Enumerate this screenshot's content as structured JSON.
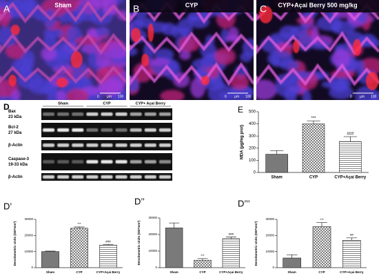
{
  "micrographs": [
    {
      "label": "A",
      "title": "Sham",
      "scale_bar": {
        "start": "0",
        "unit": "μm",
        "end": "100"
      }
    },
    {
      "label": "B",
      "title": "CYP",
      "scale_bar": {
        "start": "0",
        "unit": "μm",
        "end": "100"
      }
    },
    {
      "label": "C",
      "title": "CYP+Açai Berry 500 mg/kg",
      "scale_bar": {
        "start": "0",
        "unit": "μm",
        "end": "100"
      }
    }
  ],
  "blot": {
    "label": "D",
    "groups": [
      "Sham",
      "CYP",
      "CYP+ Açai Berry"
    ],
    "rows": [
      [
        "Bax",
        "23 kDa"
      ],
      [
        "Bcl-2",
        "27 kDa"
      ],
      [
        "β-Actin"
      ],
      [
        "Caspase-3",
        "19-33 kDa"
      ],
      [
        "β-Actin"
      ]
    ]
  },
  "chart_data": [
    {
      "type": "bar",
      "label": "E",
      "ylabel": "MDA (µg/mg prot)",
      "categories": [
        "Sham",
        "CYP",
        "CYP+Açai Berry"
      ],
      "values": [
        150,
        400,
        255
      ],
      "errors": [
        30,
        25,
        40
      ],
      "annotations": [
        null,
        "***",
        "###"
      ],
      "ylim": [
        0,
        500
      ],
      "yticks": [
        0,
        100,
        200,
        300,
        400,
        500
      ]
    },
    {
      "type": "bar",
      "label": "D’",
      "ylabel": "Densitometric Units (OD*mm²)",
      "categories": [
        "Sham",
        "CYP",
        "CYP+Açai Berry"
      ],
      "values": [
        10000,
        24500,
        14000
      ],
      "errors": [
        300,
        800,
        500
      ],
      "annotations": [
        null,
        "***",
        "###"
      ],
      "ylim": [
        0,
        30000
      ],
      "yticks": [
        0,
        10000,
        20000,
        30000
      ]
    },
    {
      "type": "bar",
      "label": "D’’",
      "ylabel": "Densitometric Units (OD*mm²)",
      "categories": [
        "Sham",
        "CYP",
        "CYP+Açai Berry"
      ],
      "values": [
        24000,
        4500,
        17500
      ],
      "errors": [
        3000,
        1000,
        1000
      ],
      "annotations": [
        null,
        "***",
        "###"
      ],
      "ylim": [
        0,
        30000
      ],
      "yticks": [
        0,
        10000,
        20000,
        30000
      ]
    },
    {
      "type": "bar",
      "label": "D’’’",
      "ylabel": "Densitometric Units (OD*mm²)",
      "categories": [
        "Sham",
        "CYP",
        "CYP+Açai Berry"
      ],
      "values": [
        6000,
        25500,
        17000
      ],
      "errors": [
        2000,
        2500,
        1500
      ],
      "annotations": [
        null,
        "***",
        "##"
      ],
      "ylim": [
        0,
        30000
      ],
      "yticks": [
        0,
        10000,
        20000,
        30000
      ]
    }
  ]
}
